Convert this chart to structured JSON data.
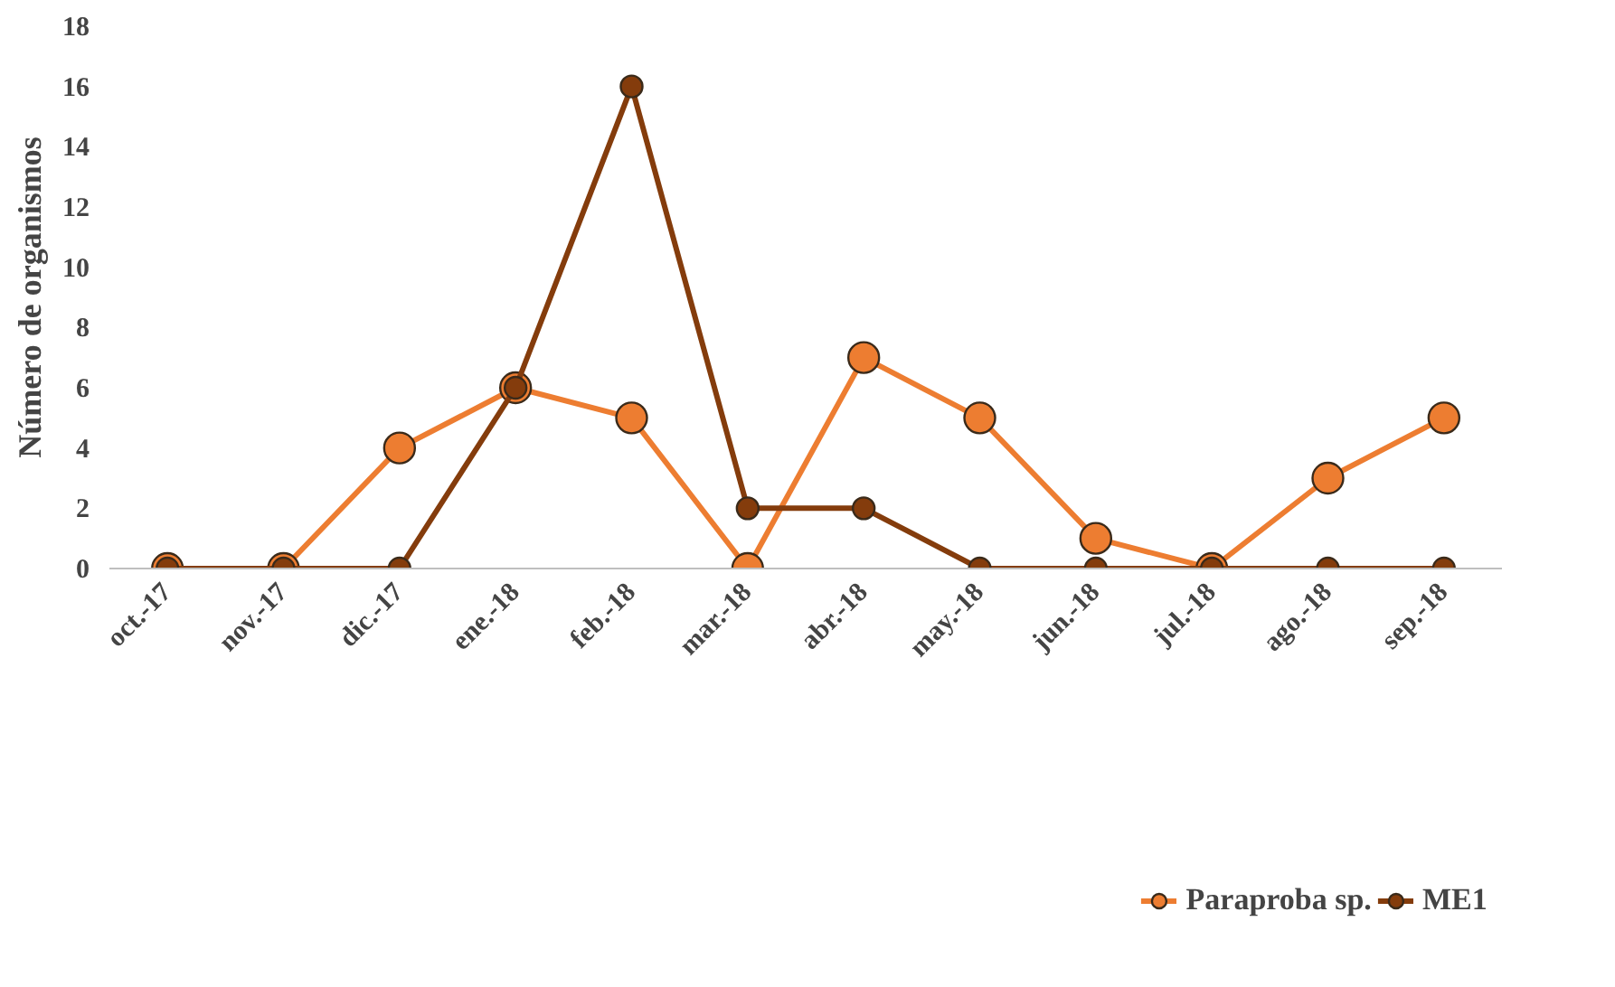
{
  "chart_data": {
    "type": "line",
    "ylabel": "Número de organismos",
    "categories": [
      "oct.-17",
      "nov.-17",
      "dic.-17",
      "ene.-18",
      "feb.-18",
      "mar.-18",
      "abr.-18",
      "may.-18",
      "jun.-18",
      "jul.-18",
      "ago.-18",
      "sep.-18"
    ],
    "series": [
      {
        "name": "Paraproba sp.",
        "color": "#ed7d31",
        "values": [
          0,
          0,
          4,
          6,
          5,
          0,
          7,
          5,
          1,
          0,
          3,
          5
        ]
      },
      {
        "name": "ME1",
        "color": "#843c0c",
        "values": [
          0,
          0,
          0,
          6,
          16,
          2,
          2,
          0,
          0,
          0,
          0,
          0
        ]
      }
    ],
    "ylim": [
      0,
      18
    ],
    "yticks": [
      0,
      2,
      4,
      6,
      8,
      10,
      12,
      14,
      16,
      18
    ],
    "grid": false,
    "legend": "bottom",
    "marker": "circle",
    "line_style": "solid"
  }
}
